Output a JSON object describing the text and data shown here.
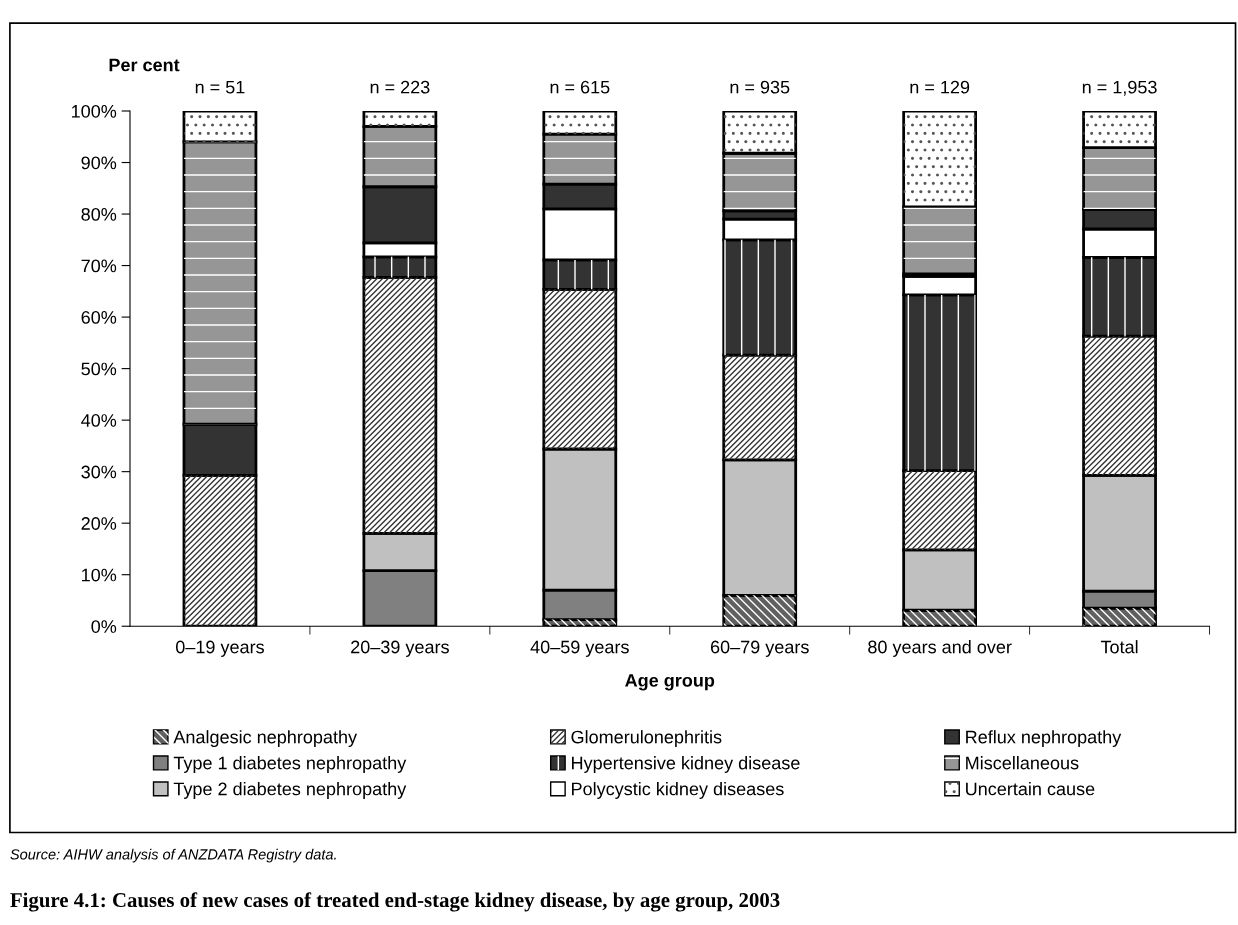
{
  "chart_data": {
    "type": "bar",
    "stacked": true,
    "title": "Figure 4.1: Causes of new cases of treated end-stage kidney disease, by age group, 2003",
    "xlabel": "Age group",
    "ylabel": "Per cent",
    "categories": [
      "0–19 years",
      "20–39 years",
      "40–59 years",
      "60–79 years",
      "80 years and over",
      "Total"
    ],
    "series": [
      {
        "name": "Analgesic nephropathy",
        "color": "#606060",
        "values": [
          0,
          0,
          1.3,
          6.0,
          3.1,
          3.5
        ]
      },
      {
        "name": "Type 1 diabetes nephropathy",
        "color": "#808080",
        "values": [
          0,
          10.8,
          5.7,
          null,
          0,
          3.3
        ]
      },
      {
        "name": "Type 2 diabetes nephropathy",
        "color": "#c0c0c0",
        "values": [
          0,
          7.2,
          27.4,
          26.3,
          11.7,
          22.5
        ]
      },
      {
        "name": "Glomerulonephritis",
        "color": "#ffffff",
        "values": [
          29.3,
          49.7,
          31.0,
          20.3,
          15.4,
          27.0
        ]
      },
      {
        "name": "Hypertensive kidney disease",
        "color": "#333333",
        "values": [
          0,
          4.0,
          5.7,
          22.4,
          34.1,
          15.3
        ]
      },
      {
        "name": "Polycystic kidney diseases",
        "color": "#ffffff",
        "values": [
          0,
          2.7,
          9.9,
          4.0,
          3.6,
          5.5
        ]
      },
      {
        "name": "Reflux nephropathy",
        "color": "#333333",
        "values": [
          9.9,
          10.9,
          4.8,
          1.6,
          0.5,
          3.8
        ]
      },
      {
        "name": "Miscellaneous",
        "color": "#969696",
        "values": [
          54.8,
          11.7,
          9.7,
          11.2,
          13.0,
          12.0
        ]
      },
      {
        "name": "Uncertain cause",
        "color": "#ffffff",
        "values": [
          6.0,
          3.0,
          4.5,
          8.2,
          18.6,
          7.1
        ]
      }
    ],
    "ylim": [
      0,
      100
    ],
    "yticks": [
      {
        "value": 0,
        "label": "0%"
      },
      {
        "value": 10,
        "label": "10%"
      },
      {
        "value": 20,
        "label": "20%"
      },
      {
        "value": 30,
        "label": "30%"
      },
      {
        "value": 40,
        "label": "40%"
      },
      {
        "value": 50,
        "label": "50%"
      },
      {
        "value": 60,
        "label": "60%"
      },
      {
        "value": 70,
        "label": "70%"
      },
      {
        "value": 80,
        "label": "80%"
      },
      {
        "value": 90,
        "label": "90%"
      },
      {
        "value": 100,
        "label": "100%"
      }
    ],
    "grid": false,
    "legend": "bottom",
    "annotations": [
      {
        "text": "n = 51",
        "x": "0–19 years",
        "y": 100
      },
      {
        "text": "n = 223",
        "x": "20–39 years",
        "y": 100
      },
      {
        "text": "n = 615",
        "x": "40–59 years",
        "y": 100
      },
      {
        "text": "n = 935",
        "x": "60–79 years",
        "y": 100
      },
      {
        "text": "n = 129",
        "x": "80 years and over",
        "y": 100
      },
      {
        "text": "n = 1,953",
        "x": "Total",
        "y": 100
      },
      "Source: AIHW analysis of ANZDATA Registry data."
    ]
  }
}
